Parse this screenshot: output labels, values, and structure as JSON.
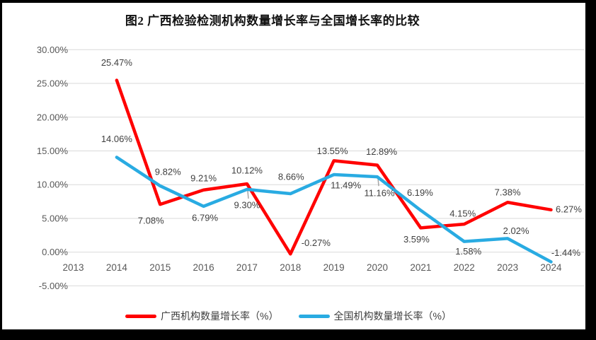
{
  "title": "图2 广西检验检测机构数量增长率与全国增长率的比较",
  "chart_data": {
    "type": "line",
    "categories": [
      "2013",
      "2014",
      "2015",
      "2016",
      "2017",
      "2018",
      "2019",
      "2020",
      "2021",
      "2022",
      "2023",
      "2024"
    ],
    "y_axis": {
      "min": -5,
      "max": 30,
      "step": 5,
      "tick_values": [
        30,
        25,
        20,
        15,
        10,
        5,
        0,
        -5
      ],
      "tick_labels": [
        "30.00%",
        "25.00%",
        "20.00%",
        "15.00%",
        "10.00%",
        "5.00%",
        "0.00%",
        "-5.00%"
      ],
      "grid": true
    },
    "legend_position": "bottom",
    "series": [
      {
        "name": "广西机构数量增长率（%）",
        "color": "#ff0000",
        "values": [
          null,
          25.47,
          7.08,
          9.21,
          10.12,
          -0.27,
          13.55,
          12.89,
          3.59,
          4.15,
          7.38,
          6.27
        ],
        "labels": [
          null,
          "25.47%",
          "7.08%",
          "9.21%",
          "10.12%",
          "-0.27%",
          "13.55%",
          "12.89%",
          "3.59%",
          "4.15%",
          "7.38%",
          "6.27%"
        ]
      },
      {
        "name": "全国机构数量增长率（%）",
        "color": "#29abe2",
        "values": [
          null,
          14.06,
          9.82,
          6.79,
          9.3,
          8.66,
          11.49,
          11.16,
          6.19,
          1.58,
          2.02,
          -1.44
        ],
        "labels": [
          null,
          "14.06%",
          "9.82%",
          "6.79%",
          "9.30%",
          "8.66%",
          "11.49%",
          "11.16%",
          "6.19%",
          "1.58%",
          "2.02%",
          "-1.44%"
        ]
      }
    ]
  }
}
